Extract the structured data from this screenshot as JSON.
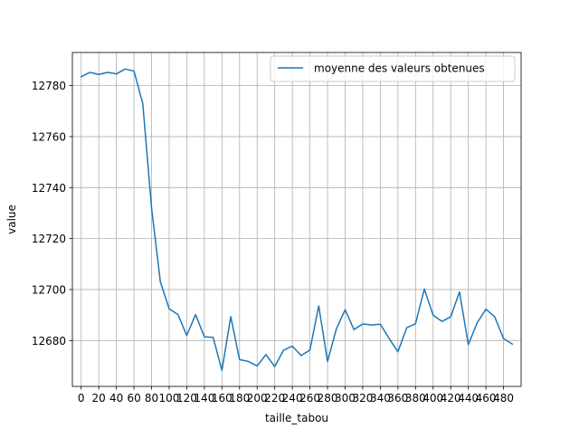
{
  "chart_data": {
    "type": "line",
    "title": "",
    "xlabel": "taille_tabou",
    "ylabel": "value",
    "xlim": [
      -10,
      500
    ],
    "ylim": [
      12662,
      12793
    ],
    "grid": true,
    "legend_position": "top-right",
    "xticks": [
      0,
      20,
      40,
      60,
      80,
      100,
      120,
      140,
      160,
      180,
      200,
      220,
      240,
      260,
      280,
      300,
      320,
      340,
      360,
      380,
      400,
      420,
      440,
      460,
      480
    ],
    "xtick_labels": [
      "0",
      "20",
      "40",
      "60",
      "80",
      "100",
      "120",
      "140",
      "160",
      "180",
      "200",
      "220",
      "240",
      "260",
      "280",
      "300",
      "320",
      "340",
      "360",
      "380",
      "400",
      "420",
      "440",
      "460",
      "480"
    ],
    "yticks": [
      12680,
      12700,
      12720,
      12740,
      12760,
      12780
    ],
    "ytick_labels": [
      "12680",
      "12700",
      "12720",
      "12740",
      "12760",
      "12780"
    ],
    "series": [
      {
        "name": "moyenne des valeurs obtenues",
        "color": "#1f77b4",
        "x": [
          0,
          10,
          20,
          30,
          40,
          50,
          60,
          70,
          80,
          90,
          100,
          110,
          120,
          130,
          140,
          150,
          160,
          170,
          180,
          190,
          200,
          210,
          220,
          230,
          240,
          250,
          260,
          270,
          280,
          290,
          300,
          310,
          320,
          330,
          340,
          350,
          360,
          370,
          380,
          390,
          400,
          410,
          420,
          430,
          440,
          450,
          460,
          470,
          480,
          490
        ],
        "y": [
          12783.5,
          12785.2,
          12784.4,
          12785.2,
          12784.6,
          12786.5,
          12785.7,
          12773,
          12732,
          12703,
          12692.5,
          12690.2,
          12682,
          12690.2,
          12681.5,
          12681.2,
          12668.3,
          12689.4,
          12672.5,
          12671.8,
          12670,
          12674.5,
          12669.8,
          12676.2,
          12677.8,
          12674.1,
          12676.3,
          12693.6,
          12671.8,
          12684.5,
          12692.1,
          12684.3,
          12686.5,
          12686.1,
          12686.4,
          12680.8,
          12675.6,
          12685,
          12686.6,
          12700.2,
          12689.9,
          12687.5,
          12689.3,
          12699.1,
          12678.4,
          12686.9,
          12692.3,
          12689.3,
          12680.8,
          12678.6
        ]
      }
    ]
  }
}
